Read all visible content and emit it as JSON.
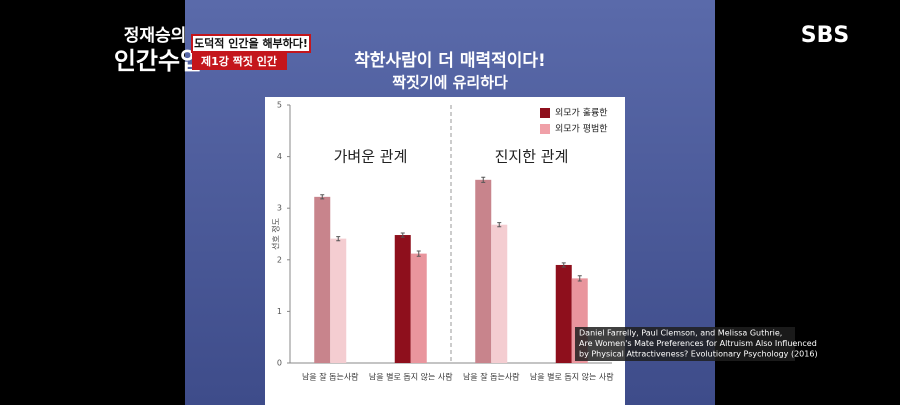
{
  "broadcast": {
    "channel": "SBS",
    "show_line1": "정재승의",
    "show_line2": "인간수업",
    "episode_tagline": "도덕적 인간을 해부하다!",
    "episode_title": "제1강 짝짓 인간"
  },
  "slide": {
    "title": "착한사람이 더 매력적이다!",
    "subtitle": "짝짓기에 유리하다"
  },
  "citation": {
    "lines": [
      "Daniel Farrelly, Paul Clemson, and Melissa Guthrie,",
      "Are Women's Mate Preferences for Altruism Also Influenced",
      "by Physical Attractiveness? Evolutionary Psychology (2016)"
    ]
  },
  "chart_data": {
    "type": "bar",
    "ylabel": "선호 정도",
    "facets": [
      "가벼운 관계",
      "진지한 관계"
    ],
    "categories": [
      "남을 잘 돕는사람",
      "남을 별로 돕지 않는 사람",
      "남을 잘 돕는사람",
      "남을 별로 돕지 않는 사람"
    ],
    "series": [
      {
        "name": "외모가 훌륭한",
        "color": "#8e0f1c",
        "colors": [
          "#c8848c",
          "#8e0f1c",
          "#c8848c",
          "#8e0f1c"
        ],
        "values": [
          3.22,
          2.48,
          3.55,
          1.9
        ],
        "errors": [
          0.04,
          0.04,
          0.05,
          0.04
        ]
      },
      {
        "name": "외모가 평범한",
        "color": "#f0a0a8",
        "colors": [
          "#f4cdd1",
          "#e9959d",
          "#f4cdd1",
          "#e9959d"
        ],
        "values": [
          2.41,
          2.12,
          2.68,
          1.64
        ],
        "errors": [
          0.04,
          0.05,
          0.04,
          0.05
        ]
      }
    ],
    "ylim": [
      0,
      5
    ],
    "yticks": [
      0,
      1,
      2,
      3,
      4,
      5
    ]
  }
}
